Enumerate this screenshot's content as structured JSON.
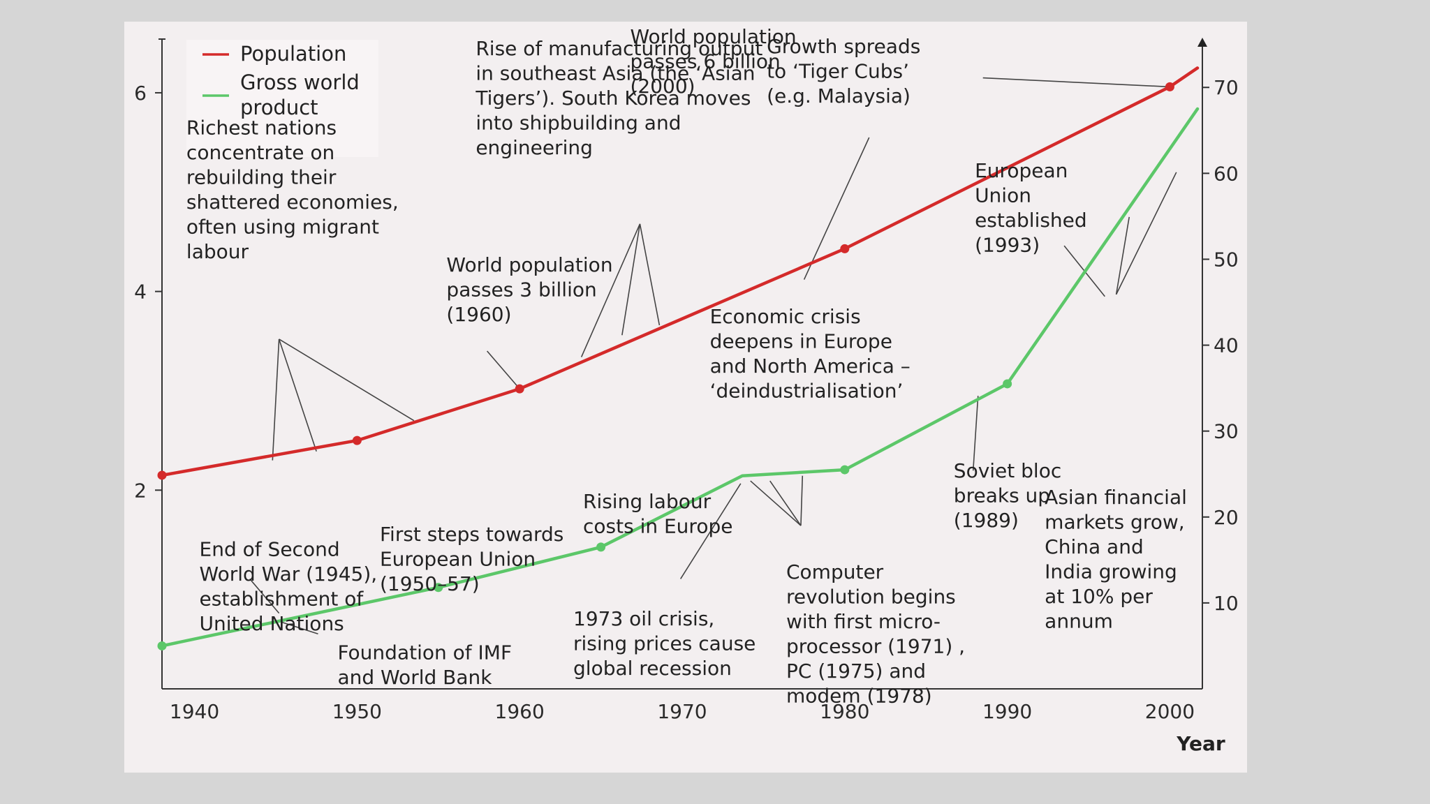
{
  "chart_data": {
    "type": "line",
    "x_axis": {
      "label": "Year",
      "range": [
        1938,
        2002
      ],
      "ticks": [
        1940,
        1950,
        1960,
        1970,
        1980,
        1990,
        2000
      ]
    },
    "y_left": {
      "range": [
        0,
        6.4
      ],
      "ticks": [
        2,
        4,
        6
      ]
    },
    "y_right": {
      "range": [
        0,
        74
      ],
      "ticks": [
        10,
        20,
        30,
        40,
        50,
        60,
        70
      ]
    },
    "legend": {
      "placement": "top-left"
    },
    "series": [
      {
        "name": "Population",
        "color": "#d42a2a",
        "axis": "left",
        "points": [
          [
            1938,
            2.15
          ],
          [
            1950,
            2.5
          ],
          [
            1960,
            3.02
          ],
          [
            1980,
            4.43
          ],
          [
            2000,
            6.06
          ],
          [
            2001.7,
            6.25
          ]
        ],
        "markers": [
          [
            1938,
            2.15
          ],
          [
            1950,
            2.5
          ],
          [
            1960,
            3.02
          ],
          [
            1980,
            4.43
          ],
          [
            2000,
            6.06
          ]
        ]
      },
      {
        "name": "Gross world product",
        "color": "#5cc769",
        "axis": "right",
        "points": [
          [
            1938,
            5
          ],
          [
            1955,
            11.8
          ],
          [
            1965,
            16.5
          ],
          [
            1973.7,
            24.8
          ],
          [
            1980,
            25.5
          ],
          [
            1990,
            35.5
          ],
          [
            2001.7,
            67.5
          ]
        ],
        "markers": [
          [
            1938,
            5
          ],
          [
            1955,
            11.8
          ],
          [
            1965,
            16.5
          ],
          [
            1980,
            25.5
          ],
          [
            1990,
            35.5
          ]
        ]
      }
    ],
    "legend_lines": [
      [
        "Population"
      ],
      [
        "Gross world",
        "product"
      ]
    ],
    "annotations": [
      {
        "lines": [
          "World population",
          "passes 6 billion",
          "(2000)"
        ],
        "at": [
          1966.8,
          6.5
        ],
        "leaders": [
          [
            [
              1988.5,
              6.15
            ],
            [
              2000,
              6.06
            ]
          ]
        ]
      },
      {
        "lines": [
          "Growth spreads",
          "to ‘Tiger Cubs’",
          "(e.g. Malaysia)"
        ],
        "at": [
          1975.2,
          6.4
        ],
        "leaders": [
          [
            [
              1981.5,
              5.55
            ],
            [
              1977.5,
              4.12
            ]
          ]
        ]
      },
      {
        "lines": [
          "Rise of manufacturing output",
          "in southeast Asia (the ‘Asian",
          "Tigers’). South Korea moves",
          "into shipbuilding and",
          "engineering"
        ],
        "at": [
          1957.3,
          6.38
        ],
        "leaders": [
          [
            [
              1967.4,
              4.68
            ],
            [
              1963.8,
              3.34
            ]
          ],
          [
            [
              1967.4,
              4.68
            ],
            [
              1966.3,
              3.56
            ]
          ],
          [
            [
              1967.4,
              4.68
            ],
            [
              1968.6,
              3.66
            ]
          ]
        ]
      },
      {
        "lines": [
          "Richest nations",
          "concentrate on",
          "rebuilding their",
          "shattered economies,",
          "often using migrant",
          "labour"
        ],
        "at": [
          1939.5,
          5.58
        ],
        "leaders": [
          [
            [
              1945.2,
              3.52
            ],
            [
              1944.8,
              2.3
            ]
          ],
          [
            [
              1945.2,
              3.52
            ],
            [
              1947.5,
              2.39
            ]
          ],
          [
            [
              1945.2,
              3.52
            ],
            [
              1953.5,
              2.7
            ]
          ]
        ]
      },
      {
        "lines": [
          "World population",
          "passes 3 billion",
          "(1960)"
        ],
        "at": [
          1955.5,
          4.2
        ],
        "leaders": [
          [
            [
              1958,
              3.4
            ],
            [
              1960,
              3.02
            ]
          ]
        ]
      },
      {
        "lines": [
          "European",
          "Union",
          "established",
          "(1993)"
        ],
        "at": [
          1988,
          5.15
        ],
        "leaders": [
          [
            [
              1993.5,
              4.46
            ],
            [
              1996,
              3.95
            ]
          ],
          [
            [
              1997.5,
              4.75
            ],
            [
              1996.7,
              3.97
            ]
          ],
          [
            [
              2000.4,
              5.2
            ],
            [
              1996.7,
              3.97
            ]
          ]
        ]
      },
      {
        "lines": [
          "Economic crisis",
          "deepens in Europe",
          "and North America –",
          "‘deindustrialisation’"
        ],
        "at": [
          1971.7,
          3.68
        ]
      },
      {
        "lines": [
          "Rising labour",
          "costs in Europe"
        ],
        "at": [
          1963.9,
          1.82
        ]
      },
      {
        "lines": [
          "Asian financial",
          "markets grow,",
          "China and",
          "India growing",
          "at 10% per",
          "annum"
        ],
        "at": [
          1992.3,
          1.86
        ]
      },
      {
        "lines": [
          "First steps towards",
          "European Union",
          "(1950–57)"
        ],
        "at": [
          1951.4,
          1.49
        ]
      },
      {
        "lines": [
          "End of Second",
          "World War (1945),",
          "establishment of",
          "United Nations"
        ],
        "at": [
          1940.3,
          1.34
        ],
        "leaders": [
          [
            [
              1943.4,
              12.8
            ],
            [
              1945.2,
              8.8
            ]
          ]
        ]
      },
      {
        "lines": [
          "Soviet bloc",
          "breaks up",
          "(1989)"
        ],
        "at": [
          1986.7,
          2.13
        ],
        "leaders": [
          [
            [
              1987.9,
              25.4
            ],
            [
              1988.2,
              34.1
            ]
          ]
        ]
      },
      {
        "lines": [
          "Computer",
          "revolution begins",
          "with first micro-",
          "processor (1971) ,",
          "PC (1975) and",
          "modem (1978)"
        ],
        "at": [
          1976.4,
          1.11
        ],
        "leaders": [
          [
            [
              1977.3,
              19
            ],
            [
              1974.2,
              24.2
            ]
          ],
          [
            [
              1977.3,
              19
            ],
            [
              1975.4,
              24.2
            ]
          ],
          [
            [
              1977.3,
              19
            ],
            [
              1977.4,
              24.8
            ]
          ]
        ]
      },
      {
        "lines": [
          "1973 oil crisis,",
          "rising prices cause",
          "global recession"
        ],
        "at": [
          1963.3,
          0.64
        ],
        "leaders": [
          [
            [
              1969.9,
              12.8
            ],
            [
              1973.6,
              23.9
            ]
          ]
        ]
      },
      {
        "lines": [
          "Foundation of IMF",
          "and World Bank"
        ],
        "at": [
          1948.8,
          0.3
        ],
        "leaders": [
          [
            [
              1945.3,
              7.8
            ],
            [
              1947.6,
              6.4
            ]
          ]
        ]
      }
    ]
  }
}
